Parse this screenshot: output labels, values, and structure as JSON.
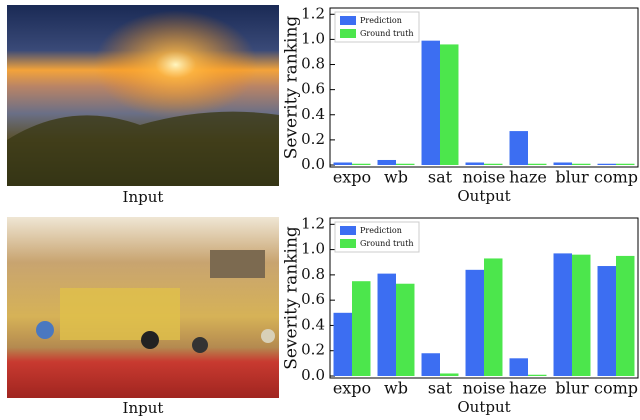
{
  "input_captions": [
    "Input",
    "Input"
  ],
  "chart_data": [
    {
      "type": "bar",
      "ylabel": "Severity ranking",
      "xlabel": "Output",
      "categories": [
        "expo",
        "wb",
        "sat",
        "noise",
        "haze",
        "blur",
        "comp"
      ],
      "series": [
        {
          "name": "Prediction",
          "color": "#3c6ef2",
          "values": [
            0.02,
            0.04,
            0.99,
            0.02,
            0.27,
            0.02,
            0.01
          ]
        },
        {
          "name": "Ground truth",
          "color": "#4ce64c",
          "values": [
            0.01,
            0.01,
            0.96,
            0.01,
            0.01,
            0.01,
            0.01
          ]
        }
      ],
      "ylim": [
        0,
        1.25
      ],
      "yticks": [
        {
          "value": 0,
          "label": "0.0"
        },
        0.2,
        0.4,
        0.6,
        0.8,
        {
          "value": 1,
          "label": "1.0"
        },
        1.2
      ],
      "legend": "upper-left"
    },
    {
      "type": "bar",
      "ylabel": "Severity ranking",
      "xlabel": "Output",
      "categories": [
        "expo",
        "wb",
        "sat",
        "noise",
        "haze",
        "blur",
        "comp"
      ],
      "series": [
        {
          "name": "Prediction",
          "color": "#3c6ef2",
          "values": [
            0.5,
            0.81,
            0.18,
            0.84,
            0.14,
            0.97,
            0.87
          ]
        },
        {
          "name": "Ground truth",
          "color": "#4ce64c",
          "values": [
            0.75,
            0.73,
            0.02,
            0.93,
            0.01,
            0.96,
            0.95
          ]
        }
      ],
      "ylim": [
        0,
        1.25
      ],
      "yticks": [
        {
          "value": 0,
          "label": "0.0"
        },
        0.2,
        0.4,
        0.6,
        0.8,
        {
          "value": 1,
          "label": "1.0"
        },
        1.2
      ],
      "legend": "upper-left"
    }
  ]
}
